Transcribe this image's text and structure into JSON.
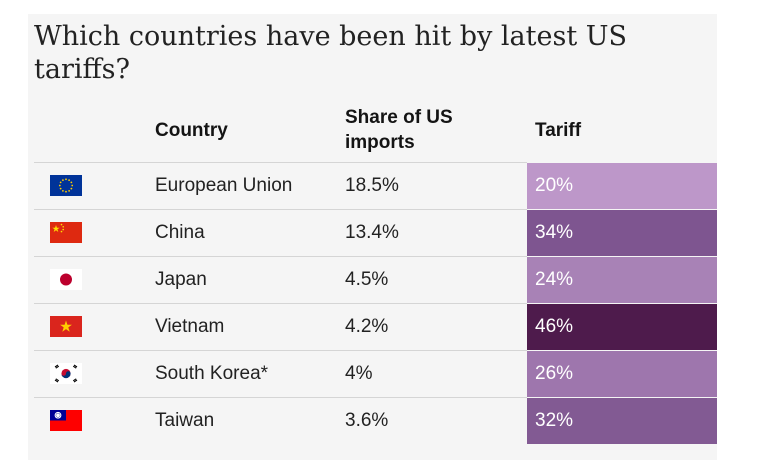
{
  "title": "Which countries have been hit by latest US tariffs?",
  "headers": {
    "country": "Country",
    "share": "Share of US imports",
    "tariff": "Tariff"
  },
  "chart_data": {
    "type": "table",
    "title": "Which countries have been hit by latest US tariffs?",
    "columns": [
      "Country",
      "Share of US imports",
      "Tariff"
    ],
    "rows": [
      {
        "country": "European Union",
        "share": "18.5%",
        "tariff": "20%",
        "share_value": 18.5,
        "tariff_value": 20,
        "flag": "eu-flag-icon"
      },
      {
        "country": "China",
        "share": "13.4%",
        "tariff": "34%",
        "share_value": 13.4,
        "tariff_value": 34,
        "flag": "china-flag-icon"
      },
      {
        "country": "Japan",
        "share": "4.5%",
        "tariff": "24%",
        "share_value": 4.5,
        "tariff_value": 24,
        "flag": "japan-flag-icon"
      },
      {
        "country": "Vietnam",
        "share": "4.2%",
        "tariff": "46%",
        "share_value": 4.2,
        "tariff_value": 46,
        "flag": "vietnam-flag-icon"
      },
      {
        "country": "South Korea*",
        "share": "4%",
        "tariff": "26%",
        "share_value": 4,
        "tariff_value": 26,
        "flag": "south-korea-flag-icon"
      },
      {
        "country": "Taiwan",
        "share": "3.6%",
        "tariff": "32%",
        "share_value": 3.6,
        "tariff_value": 32,
        "flag": "taiwan-flag-icon"
      }
    ],
    "tariff_colors": {
      "20%": "#bd97c9",
      "34%": "#7e5590",
      "24%": "#a882b6",
      "46%": "#4e1b4c",
      "26%": "#9e76ad",
      "32%": "#825a93"
    }
  }
}
